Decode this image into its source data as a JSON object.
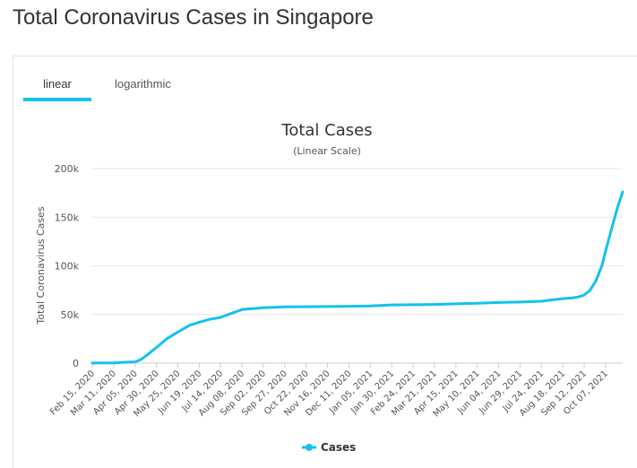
{
  "page": {
    "title": "Total Coronavirus Cases in Singapore"
  },
  "tabs": [
    {
      "label": "linear",
      "active": true
    },
    {
      "label": "logarithmic",
      "active": false
    }
  ],
  "colors": {
    "accent": "#12c2ef",
    "series": "#12c2ef",
    "grid": "#e6e6e6"
  },
  "chart_data": {
    "type": "line",
    "title": "Total Cases",
    "subtitle": "(Linear Scale)",
    "xlabel": "",
    "ylabel": "Total Coronavirus Cases",
    "ylim": [
      0,
      200000
    ],
    "yticks": [
      0,
      50000,
      100000,
      150000,
      200000
    ],
    "ytick_labels": [
      "0",
      "50k",
      "100k",
      "150k",
      "200k"
    ],
    "grid": true,
    "legend": {
      "placement": "bottom-center",
      "entries": [
        "Cases"
      ]
    },
    "xtick_labels": [
      "Feb 15, 2020",
      "Mar 11, 2020",
      "Apr 05, 2020",
      "Apr 30, 2020",
      "May 25, 2020",
      "Jun 19, 2020",
      "Jul 14, 2020",
      "Aug 08, 2020",
      "Sep 02, 2020",
      "Sep 27, 2020",
      "Oct 22, 2020",
      "Nov 16, 2020",
      "Dec 11, 2020",
      "Jan 05, 2021",
      "Jan 30, 2021",
      "Feb 24, 2021",
      "Mar 21, 2021",
      "Apr 15, 2021",
      "May 10, 2021",
      "Jun 04, 2021",
      "Jun 29, 2021",
      "Jul 24, 2021",
      "Aug 18, 2021",
      "Sep 12, 2021",
      "Oct 07, 2021"
    ],
    "series": [
      {
        "name": "Cases",
        "x": [
          "Feb 15, 2020",
          "Mar 11, 2020",
          "Mar 25, 2020",
          "Apr 05, 2020",
          "Apr 12, 2020",
          "Apr 20, 2020",
          "Apr 30, 2020",
          "May 12, 2020",
          "May 25, 2020",
          "Jun 08, 2020",
          "Jun 19, 2020",
          "Jul 01, 2020",
          "Jul 14, 2020",
          "Jul 26, 2020",
          "Aug 08, 2020",
          "Aug 20, 2020",
          "Sep 02, 2020",
          "Sep 27, 2020",
          "Oct 22, 2020",
          "Nov 16, 2020",
          "Dec 11, 2020",
          "Jan 05, 2021",
          "Jan 30, 2021",
          "Feb 24, 2021",
          "Mar 21, 2021",
          "Apr 15, 2021",
          "May 10, 2021",
          "Jun 04, 2021",
          "Jun 29, 2021",
          "Jul 24, 2021",
          "Aug 05, 2021",
          "Aug 18, 2021",
          "Aug 30, 2021",
          "Sep 05, 2021",
          "Sep 12, 2021",
          "Sep 19, 2021",
          "Sep 26, 2021",
          "Oct 03, 2021",
          "Oct 07, 2021",
          "Oct 14, 2021",
          "Oct 21, 2021",
          "Oct 27, 2021"
        ],
        "values": [
          75,
          200,
          900,
          1300,
          3700,
          9000,
          16000,
          25000,
          32000,
          39000,
          42000,
          45000,
          47000,
          51000,
          55000,
          56000,
          57000,
          57800,
          58000,
          58200,
          58400,
          58800,
          59800,
          60000,
          60300,
          60900,
          61500,
          62300,
          62800,
          63600,
          65000,
          66300,
          67100,
          68000,
          70000,
          75000,
          85000,
          101000,
          115000,
          138000,
          160000,
          176000
        ]
      }
    ]
  }
}
